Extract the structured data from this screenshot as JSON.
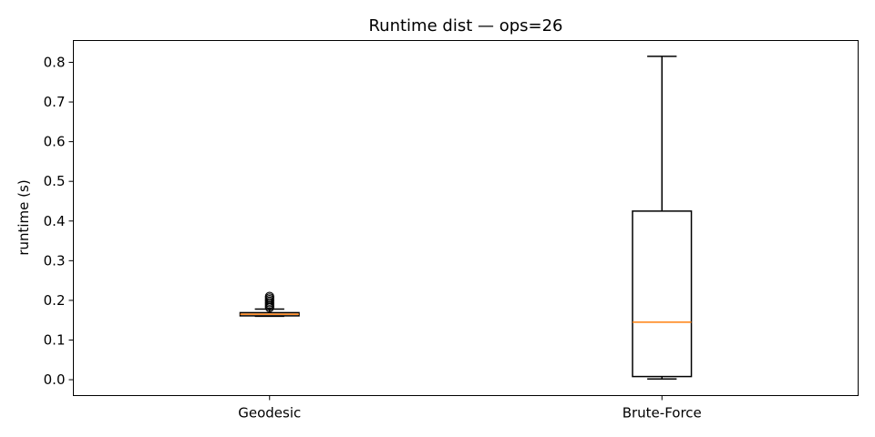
{
  "chart_data": {
    "type": "box",
    "title": "Runtime dist — ops=26",
    "xlabel": "",
    "ylabel": "runtime (s)",
    "ylim": [
      -0.04,
      0.855
    ],
    "yticks": [
      "0.0",
      "0.1",
      "0.2",
      "0.3",
      "0.4",
      "0.5",
      "0.6",
      "0.7",
      "0.8"
    ],
    "grid": false,
    "categories": [
      "Geodesic",
      "Brute-Force"
    ],
    "boxes": [
      {
        "name": "Geodesic",
        "whisker_low": 0.16,
        "q1": 0.161,
        "median": 0.165,
        "q3": 0.169,
        "whisker_high": 0.178,
        "outliers": [
          0.182,
          0.186,
          0.19,
          0.194,
          0.198,
          0.202,
          0.206,
          0.21
        ]
      },
      {
        "name": "Brute-Force",
        "whisker_low": 0.002,
        "q1": 0.008,
        "median": 0.145,
        "q3": 0.425,
        "whisker_high": 0.815,
        "outliers": []
      }
    ],
    "colors": {
      "box": "#000000",
      "median": "#ff7f0e",
      "axes": "#000000"
    }
  }
}
